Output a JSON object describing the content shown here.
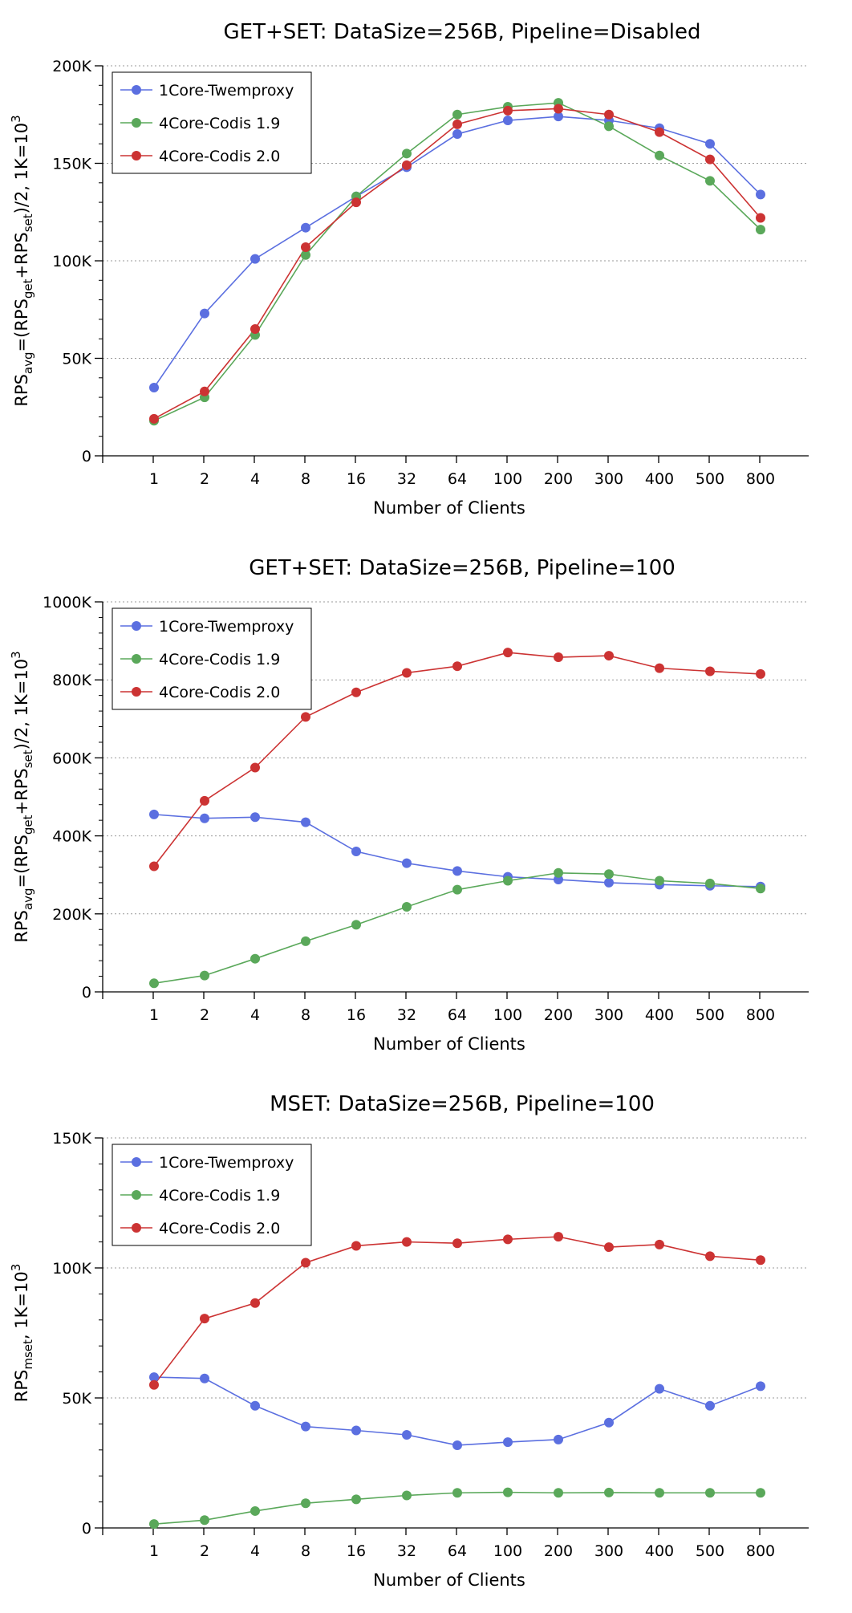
{
  "charts": [
    {
      "type": "line",
      "title": "GET+SET: DataSize=256B, Pipeline=Disabled",
      "xlabel": "Number of Clients",
      "ylabel": {
        "base": "RPS",
        "sub": "avg",
        "rest1": "=(RPS",
        "sub2": "get",
        "rest2": "+RPS",
        "sub3": "set",
        "rest3": ")/2, 1K=10",
        "sup": "3"
      },
      "ylim": [
        0,
        200000
      ],
      "yticks": [
        0,
        50000,
        100000,
        150000,
        200000
      ],
      "ytick_labels": [
        "0",
        "50K",
        "100K",
        "150K",
        "200K"
      ],
      "categories": [
        "1",
        "2",
        "4",
        "8",
        "16",
        "32",
        "64",
        "100",
        "200",
        "300",
        "400",
        "500",
        "800"
      ],
      "grid": "horizontal-dotted",
      "legend": "top-left",
      "series": [
        {
          "name": "1Core-Twemproxy",
          "color": "#5b6fe0",
          "values": [
            35000,
            73000,
            101000,
            117000,
            133000,
            148000,
            165000,
            172000,
            174000,
            172000,
            168000,
            160000,
            134000
          ]
        },
        {
          "name": "4Core-Codis 1.9",
          "color": "#5aa85a",
          "values": [
            18000,
            30000,
            62000,
            103000,
            133000,
            155000,
            175000,
            179000,
            181000,
            169000,
            154000,
            141000,
            116000
          ]
        },
        {
          "name": "4Core-Codis 2.0",
          "color": "#cc3333",
          "values": [
            19000,
            33000,
            65000,
            107000,
            130000,
            149000,
            170000,
            177000,
            178000,
            175000,
            166000,
            152000,
            122000
          ]
        }
      ]
    },
    {
      "type": "line",
      "title": "GET+SET: DataSize=256B, Pipeline=100",
      "xlabel": "Number of Clients",
      "ylabel": {
        "base": "RPS",
        "sub": "avg",
        "rest1": "=(RPS",
        "sub2": "get",
        "rest2": "+RPS",
        "sub3": "set",
        "rest3": ")/2, 1K=10",
        "sup": "3"
      },
      "ylim": [
        0,
        1000000
      ],
      "yticks": [
        0,
        200000,
        400000,
        600000,
        800000,
        1000000
      ],
      "ytick_labels": [
        "0",
        "200K",
        "400K",
        "600K",
        "800K",
        "1000K"
      ],
      "categories": [
        "1",
        "2",
        "4",
        "8",
        "16",
        "32",
        "64",
        "100",
        "200",
        "300",
        "400",
        "500",
        "800"
      ],
      "grid": "horizontal-dotted",
      "legend": "top-left",
      "series": [
        {
          "name": "1Core-Twemproxy",
          "color": "#5b6fe0",
          "values": [
            455000,
            445000,
            448000,
            435000,
            360000,
            330000,
            310000,
            295000,
            288000,
            280000,
            275000,
            272000,
            270000
          ]
        },
        {
          "name": "4Core-Codis 1.9",
          "color": "#5aa85a",
          "values": [
            22000,
            42000,
            85000,
            130000,
            172000,
            218000,
            262000,
            285000,
            305000,
            302000,
            285000,
            278000,
            265000
          ]
        },
        {
          "name": "4Core-Codis 2.0",
          "color": "#cc3333",
          "values": [
            322000,
            490000,
            575000,
            705000,
            768000,
            818000,
            835000,
            870000,
            858000,
            862000,
            830000,
            822000,
            815000
          ]
        }
      ]
    },
    {
      "type": "line",
      "title": "MSET: DataSize=256B, Pipeline=100",
      "xlabel": "Number of Clients",
      "ylabel": {
        "base": "RPS",
        "sub": "mset",
        "rest1": ", 1K=10",
        "sup": "3"
      },
      "ylim": [
        0,
        150000
      ],
      "yticks": [
        0,
        50000,
        100000,
        150000
      ],
      "ytick_labels": [
        "0",
        "50K",
        "100K",
        "150K"
      ],
      "categories": [
        "1",
        "2",
        "4",
        "8",
        "16",
        "32",
        "64",
        "100",
        "200",
        "300",
        "400",
        "500",
        "800"
      ],
      "grid": "horizontal-dotted",
      "legend": "top-left",
      "series": [
        {
          "name": "1Core-Twemproxy",
          "color": "#5b6fe0",
          "values": [
            58000,
            57500,
            47000,
            39000,
            37500,
            35800,
            31800,
            33000,
            34000,
            40500,
            53500,
            47000,
            54500
          ]
        },
        {
          "name": "4Core-Codis 1.9",
          "color": "#5aa85a",
          "values": [
            1500,
            3000,
            6500,
            9500,
            11000,
            12500,
            13500,
            13700,
            13500,
            13600,
            13500,
            13500,
            13500
          ]
        },
        {
          "name": "4Core-Codis 2.0",
          "color": "#cc3333",
          "values": [
            55000,
            80500,
            86500,
            102000,
            108500,
            110000,
            109500,
            111000,
            112000,
            108000,
            109000,
            104500,
            103000
          ]
        }
      ]
    }
  ]
}
